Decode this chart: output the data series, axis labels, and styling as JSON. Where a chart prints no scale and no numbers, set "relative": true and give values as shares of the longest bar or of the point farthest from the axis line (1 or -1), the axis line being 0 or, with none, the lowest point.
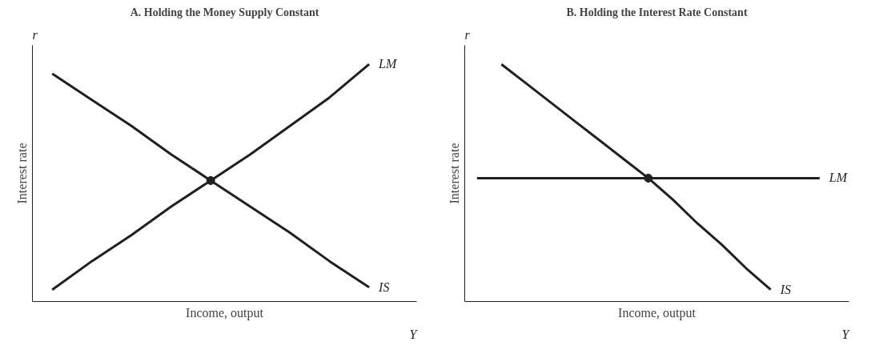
{
  "chart_data": [
    {
      "type": "line",
      "title": "A. Holding the Money Supply Constant",
      "xlabel": "Income, output",
      "ylabel": "Interest rate",
      "relative": true,
      "annotations": [
        "r",
        "Y"
      ],
      "categories": [
        null,
        null,
        null,
        null,
        null,
        null,
        null,
        null,
        null
      ],
      "series": [
        {
          "name": "LM",
          "color": "#231f20",
          "values": [
            0.05,
            0.17,
            0.28,
            0.4,
            0.51,
            0.62,
            0.74,
            0.86,
            1.0
          ]
        },
        {
          "name": "IS",
          "color": "#231f20",
          "values": [
            0.96,
            0.85,
            0.74,
            0.62,
            0.51,
            0.4,
            0.29,
            0.17,
            0.06
          ]
        },
        {
          "marker": "circle",
          "color": "#231f20",
          "values": [
            null,
            null,
            null,
            null,
            0.51,
            null,
            null,
            null,
            null
          ]
        }
      ]
    },
    {
      "type": "line",
      "title": "B. Holding the Interest Rate Constant",
      "xlabel": "Income, output",
      "ylabel": "Interest rate",
      "relative": true,
      "annotations": [
        "r",
        "Y"
      ],
      "categories": [
        null,
        null,
        null,
        null,
        null,
        null,
        null,
        null,
        null,
        null,
        null,
        null,
        null,
        null,
        null
      ],
      "series": [
        {
          "name": "LM",
          "color": "#231f20",
          "values": [
            0.52,
            0.52,
            0.52,
            0.52,
            0.52,
            0.52,
            0.52,
            0.52,
            0.52,
            0.52,
            0.52,
            0.52,
            0.52,
            0.52,
            0.52
          ]
        },
        {
          "name": "IS",
          "color": "#231f20",
          "values": [
            null,
            1.0,
            0.92,
            0.84,
            0.76,
            0.68,
            0.6,
            0.52,
            0.43,
            0.33,
            0.24,
            0.14,
            0.05,
            null,
            null
          ]
        },
        {
          "marker": "circle",
          "color": "#231f20",
          "values": [
            null,
            null,
            null,
            null,
            null,
            null,
            null,
            0.52,
            null,
            null,
            null,
            null,
            null,
            null,
            null
          ]
        }
      ]
    }
  ]
}
